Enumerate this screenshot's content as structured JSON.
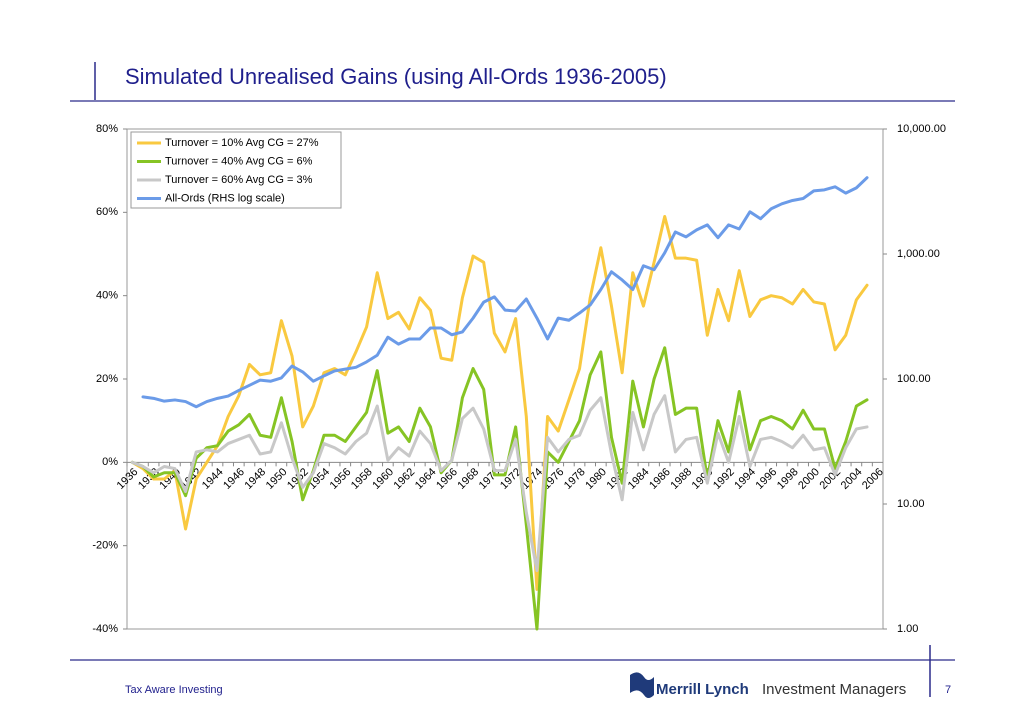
{
  "chart_data": {
    "type": "line",
    "title": "Simulated Unrealised Gains (using All-Ords 1936-2005)",
    "categories": [
      "1936",
      null,
      "1938",
      null,
      "1940",
      null,
      "1942",
      null,
      "1944",
      null,
      "1946",
      null,
      "1948",
      null,
      "1950",
      null,
      "1952",
      null,
      "1954",
      null,
      "1956",
      null,
      "1958",
      null,
      "1960",
      null,
      "1962",
      null,
      "1964",
      null,
      "1966",
      null,
      "1968",
      null,
      "1970",
      null,
      "1972",
      null,
      "1974",
      null,
      "1976",
      null,
      "1978",
      null,
      "1980",
      null,
      "1982",
      null,
      "1984",
      null,
      "1986",
      null,
      "1988",
      null,
      "1990",
      null,
      "1992",
      null,
      "1994",
      null,
      "1996",
      null,
      "1998",
      null,
      "2000",
      null,
      "2002",
      null,
      "2004",
      null,
      "2006"
    ],
    "ylim": [
      -40,
      80
    ],
    "yticks": [
      {
        "value": -40,
        "label": "-40%"
      },
      {
        "value": -20,
        "label": "-20%"
      },
      {
        "value": 0,
        "label": "0%"
      },
      {
        "value": 20,
        "label": "20%"
      },
      {
        "value": 40,
        "label": "40%"
      },
      {
        "value": 60,
        "label": "60%"
      },
      {
        "value": 80,
        "label": "80%"
      }
    ],
    "y2lim": [
      1,
      10000
    ],
    "y2log": true,
    "y2ticks": [
      {
        "value": 1,
        "label": "1.00"
      },
      {
        "value": 10,
        "label": "10.00"
      },
      {
        "value": 100,
        "label": "100.00"
      },
      {
        "value": 1000,
        "label": "1,000.00"
      },
      {
        "value": 10000,
        "label": "10,000.00"
      }
    ],
    "grid": false,
    "legend": "upper left",
    "series": [
      {
        "name": "Turnover = 10% Avg CG = 27%",
        "color": "#f9c940",
        "axis": "y",
        "values": [
          0,
          -1.5,
          -4,
          -4,
          -2,
          -16,
          -4,
          0,
          4,
          11,
          16,
          23.5,
          21,
          21.5,
          34,
          25.5,
          8.5,
          13.5,
          21.5,
          22.5,
          21,
          26.5,
          32.5,
          45.5,
          34.5,
          36,
          32,
          39.5,
          36.5,
          25,
          24.5,
          39.5,
          49.5,
          48,
          31,
          26.5,
          34.5,
          11,
          -30.5,
          11,
          7.5,
          15,
          22.5,
          39.5,
          51.5,
          37.5,
          21.5,
          45.5,
          37.5,
          48,
          59,
          49,
          49,
          48.5,
          30.5,
          41.5,
          34,
          46,
          35,
          39,
          40,
          39.5,
          38,
          41.5,
          38.5,
          38,
          27,
          30.5,
          39,
          42.5,
          null
        ]
      },
      {
        "name": "Turnover = 40% Avg CG = 6%",
        "color": "#86c424",
        "axis": "y",
        "values": [
          0,
          -1,
          -3.5,
          -2.5,
          -2.5,
          -8,
          1,
          3.5,
          4,
          7.5,
          9,
          11.5,
          6.5,
          6,
          15.5,
          5,
          -9,
          -2,
          6.5,
          6.5,
          5,
          8.5,
          12,
          22,
          7,
          8.5,
          5,
          13,
          8.5,
          -2.5,
          0.5,
          15.5,
          22.5,
          17.5,
          -3,
          -3,
          8.5,
          -15,
          -40,
          2.5,
          0,
          5,
          10,
          21,
          26.5,
          6,
          -5,
          19.5,
          8.5,
          20,
          27.5,
          11.5,
          13,
          13,
          -4,
          10,
          2.5,
          17,
          3,
          10,
          11,
          10,
          8,
          12.5,
          8,
          8,
          -1.5,
          5,
          13.5,
          15,
          null
        ]
      },
      {
        "name": "Turnover = 60% Avg CG = 3%",
        "color": "#c8c8c8",
        "axis": "y",
        "values": [
          0,
          -1,
          -2.5,
          -1,
          -1.5,
          -7,
          2.5,
          3,
          2.5,
          4.5,
          5.5,
          6.5,
          2,
          2.5,
          9.5,
          1,
          -6,
          -2.5,
          4.5,
          3.5,
          2,
          5,
          7,
          13.5,
          0.5,
          3.5,
          1.5,
          7.5,
          4.5,
          -2,
          0.5,
          10.5,
          13,
          8,
          -2,
          -2,
          5.5,
          -12,
          -26,
          6,
          2.5,
          5.5,
          6.5,
          12.5,
          15.5,
          2,
          -9,
          12,
          3,
          11.5,
          16,
          2.5,
          5.5,
          6,
          -5,
          7,
          0,
          11,
          -1,
          5.5,
          6,
          5,
          3.5,
          6.5,
          3,
          3.5,
          -3,
          3.5,
          8,
          8.5,
          null
        ]
      },
      {
        "name": "All-Ords (RHS log scale)",
        "color": "#6b9be8",
        "axis": "y2",
        "values": [
          null,
          72,
          70,
          66.5,
          68,
          66,
          60,
          66,
          70,
          73,
          81,
          89,
          98,
          96,
          102,
          127,
          114,
          96,
          106,
          116,
          120,
          124,
          137,
          155,
          216,
          190,
          209,
          209,
          256,
          256,
          226,
          238,
          307,
          412,
          454,
          356,
          350,
          437,
          307,
          209,
          307,
          295,
          337,
          391,
          520,
          721,
          620,
          520,
          805,
          748,
          1022,
          1500,
          1372,
          1560,
          1710,
          1350,
          1710,
          1585,
          2175,
          1915,
          2300,
          2520,
          2680,
          2780,
          3200,
          3260,
          3450,
          3070,
          3380,
          4080,
          null
        ]
      }
    ]
  },
  "footer": {
    "left": "Tax Aware Investing",
    "brand": "Merrill Lynch",
    "division": "Investment Managers",
    "page": "7"
  }
}
